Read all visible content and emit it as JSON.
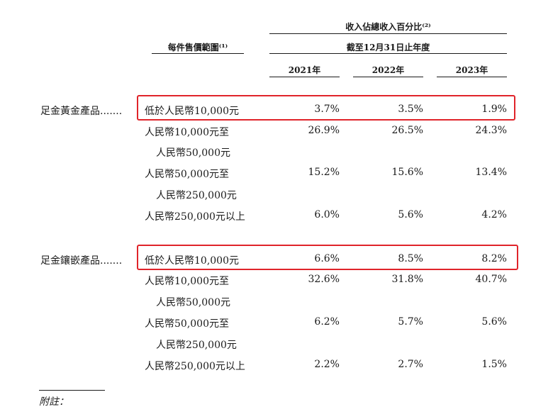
{
  "table": {
    "price_range_header": "每件售價範圍⁽¹⁾",
    "revenue_header": "收入佔總收入百分比⁽²⁾",
    "period_header": "截至12月31日止年度",
    "years": [
      "2021年",
      "2022年",
      "2023年"
    ],
    "highlight_color": "#e0242a",
    "groups": [
      {
        "category": "足金黃金產品.......",
        "rows": [
          {
            "band_1": "低於人民幣10,000元",
            "band_2": "",
            "v": [
              "3.7%",
              "3.5%",
              "1.9%"
            ],
            "highlighted": true
          },
          {
            "band_1": "人民幣10,000元至",
            "band_2": "人民幣50,000元",
            "v": [
              "26.9%",
              "26.5%",
              "24.3%"
            ],
            "highlighted": false
          },
          {
            "band_1": "人民幣50,000元至",
            "band_2": "人民幣250,000元",
            "v": [
              "15.2%",
              "15.6%",
              "13.4%"
            ],
            "highlighted": false
          },
          {
            "band_1": "人民幣250,000元以上",
            "band_2": "",
            "v": [
              "6.0%",
              "5.6%",
              "4.2%"
            ],
            "highlighted": false
          }
        ]
      },
      {
        "category": "足金鑲嵌產品.......",
        "rows": [
          {
            "band_1": "低於人民幣10,000元",
            "band_2": "",
            "v": [
              "6.6%",
              "8.5%",
              "8.2%"
            ],
            "highlighted": true
          },
          {
            "band_1": "人民幣10,000元至",
            "band_2": "人民幣50,000元",
            "v": [
              "32.6%",
              "31.8%",
              "40.7%"
            ],
            "highlighted": false
          },
          {
            "band_1": "人民幣50,000元至",
            "band_2": "人民幣250,000元",
            "v": [
              "6.2%",
              "5.7%",
              "5.6%"
            ],
            "highlighted": false
          },
          {
            "band_1": "人民幣250,000元以上",
            "band_2": "",
            "v": [
              "2.2%",
              "2.7%",
              "1.5%"
            ],
            "highlighted": false
          }
        ]
      }
    ]
  },
  "footnote_label": "附註："
}
